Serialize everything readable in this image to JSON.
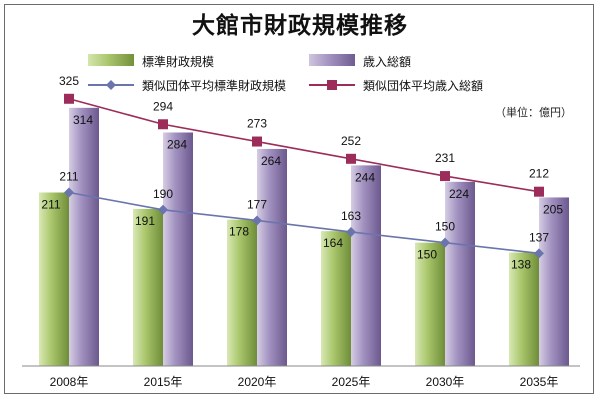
{
  "chart_data": {
    "type": "bar",
    "title": "大館市財政規模推移",
    "unit_label": "（単位：億円）",
    "categories": [
      "2008年",
      "2015年",
      "2020年",
      "2025年",
      "2030年",
      "2035年"
    ],
    "ylim": [
      0,
      360
    ],
    "grid": false,
    "legend_position": "top",
    "series": [
      {
        "name": "標準財政規模",
        "kind": "bar",
        "color": "#94b358",
        "values": [
          211,
          191,
          178,
          164,
          150,
          138
        ]
      },
      {
        "name": "歳入総額",
        "kind": "bar",
        "color": "#8c79ad",
        "values": [
          314,
          284,
          264,
          244,
          224,
          205
        ]
      },
      {
        "name": "類似団体平均標準財政規模",
        "kind": "line",
        "color": "#6b75ad",
        "values": [
          211,
          190,
          177,
          163,
          150,
          137
        ]
      },
      {
        "name": "類似団体平均歳入総額",
        "kind": "line",
        "color": "#9c2d5a",
        "values": [
          325,
          294,
          273,
          252,
          231,
          212
        ]
      }
    ]
  }
}
